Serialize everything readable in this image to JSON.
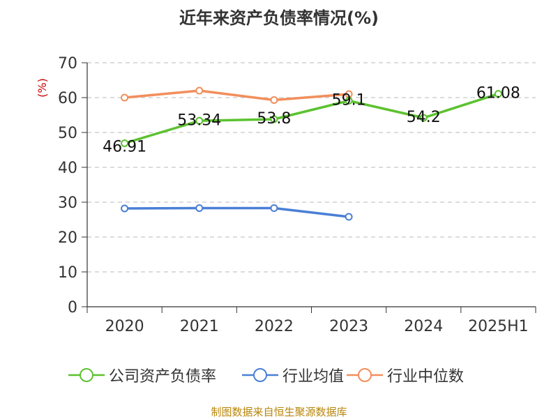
{
  "chart_data": {
    "type": "line",
    "title": "近年来资产负债率情况(%)",
    "ylabel": "(%)",
    "xlabel": "",
    "categories": [
      "2020",
      "2021",
      "2022",
      "2023",
      "2024",
      "2025H1"
    ],
    "ylim": [
      0,
      70
    ],
    "yticks": [
      0,
      10,
      20,
      30,
      40,
      50,
      60,
      70
    ],
    "grid": "horizontal-dashed",
    "legend_position": "bottom",
    "series": [
      {
        "name": "公司资产负债率",
        "color": "#5cc22f",
        "values": [
          46.91,
          53.34,
          53.8,
          59.1,
          54.2,
          61.08
        ],
        "labels": [
          "46.91",
          "53.34",
          "53.8",
          "59.1",
          "54.2",
          "61.08"
        ]
      },
      {
        "name": "行业均值",
        "color": "#4a7fd6",
        "values": [
          28.2,
          28.3,
          28.3,
          25.8,
          null,
          null
        ]
      },
      {
        "name": "行业中位数",
        "color": "#f28e5c",
        "values": [
          60.0,
          62.0,
          59.3,
          61.0,
          null,
          null
        ]
      }
    ]
  },
  "source": "制图数据来自恒生聚源数据库"
}
